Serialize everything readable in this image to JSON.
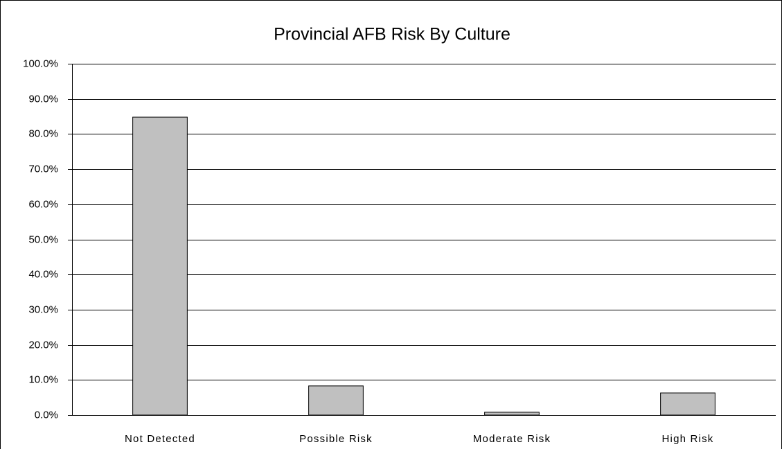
{
  "chart_data": {
    "type": "bar",
    "title": "Provincial AFB Risk By Culture",
    "categories": [
      "Not Detected",
      "Possible Risk",
      "Moderate Risk",
      "High Risk"
    ],
    "values": [
      84.8,
      8.3,
      0.8,
      6.3
    ],
    "color": "#c0c0c0",
    "ylim": [
      0,
      100
    ],
    "yticks": [
      {
        "value": 0,
        "label": "0.0%"
      },
      {
        "value": 10,
        "label": "10.0%"
      },
      {
        "value": 20,
        "label": "20.0%"
      },
      {
        "value": 30,
        "label": "30.0%"
      },
      {
        "value": 40,
        "label": "40.0%"
      },
      {
        "value": 50,
        "label": "50.0%"
      },
      {
        "value": 60,
        "label": "60.0%"
      },
      {
        "value": 70,
        "label": "70.0%"
      },
      {
        "value": 80,
        "label": "80.0%"
      },
      {
        "value": 90,
        "label": "90.0%"
      },
      {
        "value": 100,
        "label": "100.0%"
      }
    ],
    "grid": true
  }
}
